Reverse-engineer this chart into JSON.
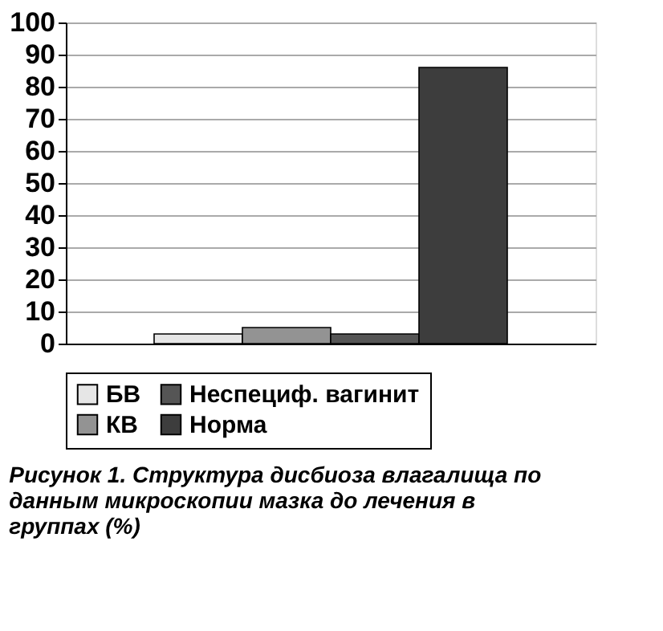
{
  "chart_data": {
    "type": "bar",
    "categories": [
      null
    ],
    "series": [
      {
        "name": "БВ",
        "color": "#e6e6e6",
        "values": [
          3
        ]
      },
      {
        "name": "КВ",
        "color": "#939393",
        "values": [
          5
        ]
      },
      {
        "name": "Неспециф. вагинит",
        "color": "#555555",
        "values": [
          3
        ]
      },
      {
        "name": "Норма",
        "color": "#3d3d3d",
        "values": [
          86
        ]
      }
    ],
    "ylim": [
      0,
      100
    ],
    "yticks": [
      0,
      10,
      20,
      30,
      40,
      50,
      60,
      70,
      80,
      90,
      100
    ],
    "grid": "y",
    "legend": "bottom",
    "annotations": [
      "Рисунок 1. Структура дисбиоза влагалища по данным микроскопии мазка до лечения в группах (%)"
    ]
  }
}
